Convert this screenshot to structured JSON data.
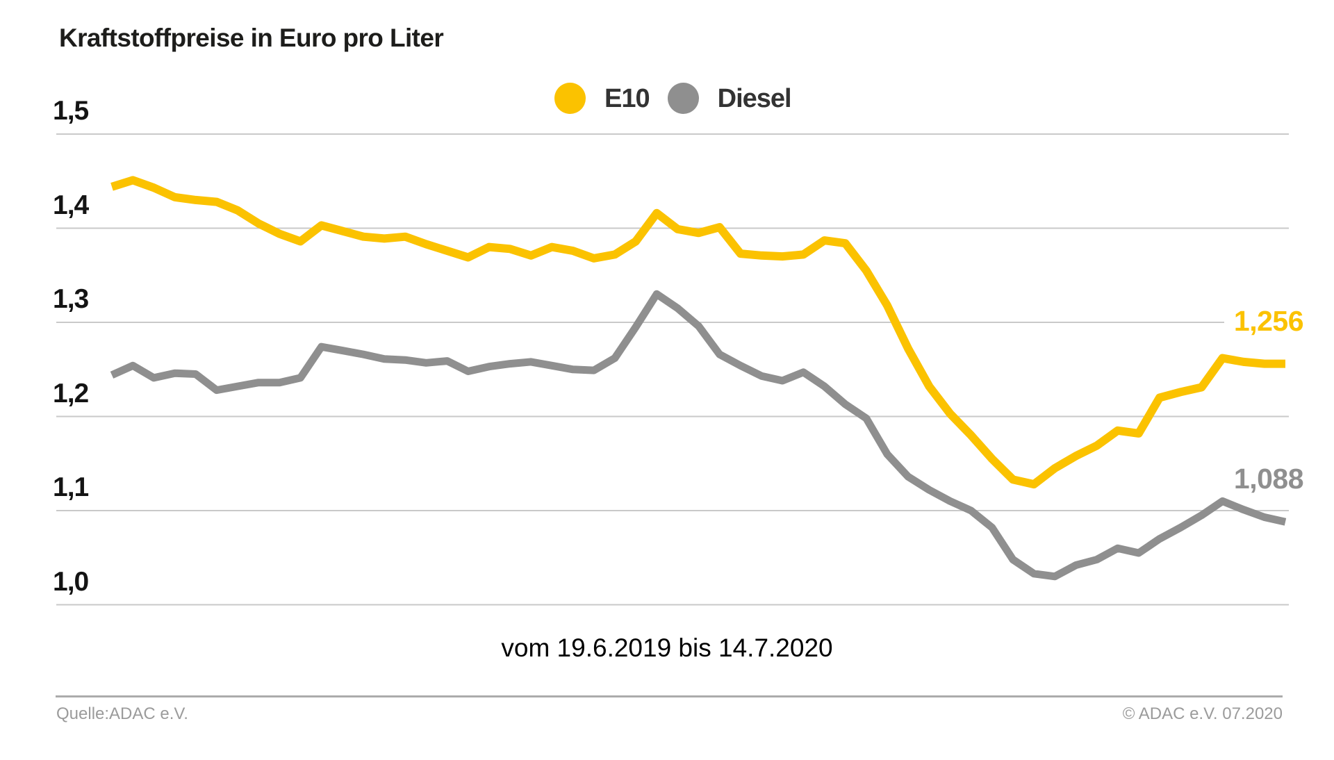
{
  "title": "Kraftstoffpreise in Euro pro Liter",
  "subtitle": "vom 19.6.2019 bis 14.7.2020",
  "footer": {
    "source": "Quelle:ADAC e.V.",
    "copyright": "© ADAC e.V. 07.2020"
  },
  "colors": {
    "e10": "#fbc200",
    "diesel": "#8f8f8f",
    "gridline": "#c9c9c9",
    "footer_text": "#9b9b9b"
  },
  "legend": [
    {
      "label": "E10",
      "color": "#fbc200"
    },
    {
      "label": "Diesel",
      "color": "#8f8f8f"
    }
  ],
  "chart_data": {
    "type": "line",
    "title": "Kraftstoffpreise in Euro pro Liter",
    "xlabel": "vom 19.6.2019 bis 14.7.2020",
    "ylabel": "Euro pro Liter",
    "x_start": "19.6.2019",
    "x_end": "14.7.2020",
    "interval": "weekly",
    "ylim": [
      1.0,
      1.5
    ],
    "grid": true,
    "legend_position": "top-center",
    "y_ticks": [
      "1,5",
      "1,4",
      "1,3",
      "1,2",
      "1,1",
      "1,0"
    ],
    "series": [
      {
        "name": "E10",
        "color": "#fbc200",
        "end_label": "1,256",
        "end_value": 1.256,
        "values": [
          1.444,
          1.451,
          1.443,
          1.433,
          1.43,
          1.428,
          1.419,
          1.405,
          1.394,
          1.386,
          1.403,
          1.397,
          1.391,
          1.389,
          1.391,
          1.383,
          1.376,
          1.369,
          1.38,
          1.378,
          1.371,
          1.38,
          1.376,
          1.368,
          1.372,
          1.386,
          1.416,
          1.399,
          1.395,
          1.401,
          1.373,
          1.371,
          1.37,
          1.372,
          1.387,
          1.384,
          1.355,
          1.318,
          1.272,
          1.232,
          1.203,
          1.18,
          1.155,
          1.133,
          1.128,
          1.145,
          1.158,
          1.169,
          1.185,
          1.182,
          1.22,
          1.226,
          1.231,
          1.262,
          1.258,
          1.256,
          1.256
        ]
      },
      {
        "name": "Diesel",
        "color": "#8f8f8f",
        "end_label": "1,088",
        "end_value": 1.088,
        "values": [
          1.244,
          1.254,
          1.241,
          1.246,
          1.245,
          1.228,
          1.232,
          1.236,
          1.236,
          1.241,
          1.274,
          1.27,
          1.266,
          1.261,
          1.26,
          1.257,
          1.259,
          1.248,
          1.253,
          1.256,
          1.258,
          1.254,
          1.25,
          1.249,
          1.262,
          1.295,
          1.33,
          1.315,
          1.296,
          1.266,
          1.254,
          1.243,
          1.238,
          1.247,
          1.232,
          1.213,
          1.198,
          1.16,
          1.136,
          1.122,
          1.11,
          1.1,
          1.082,
          1.048,
          1.033,
          1.03,
          1.042,
          1.048,
          1.06,
          1.055,
          1.07,
          1.082,
          1.095,
          1.11,
          1.101,
          1.093,
          1.088
        ]
      }
    ]
  }
}
